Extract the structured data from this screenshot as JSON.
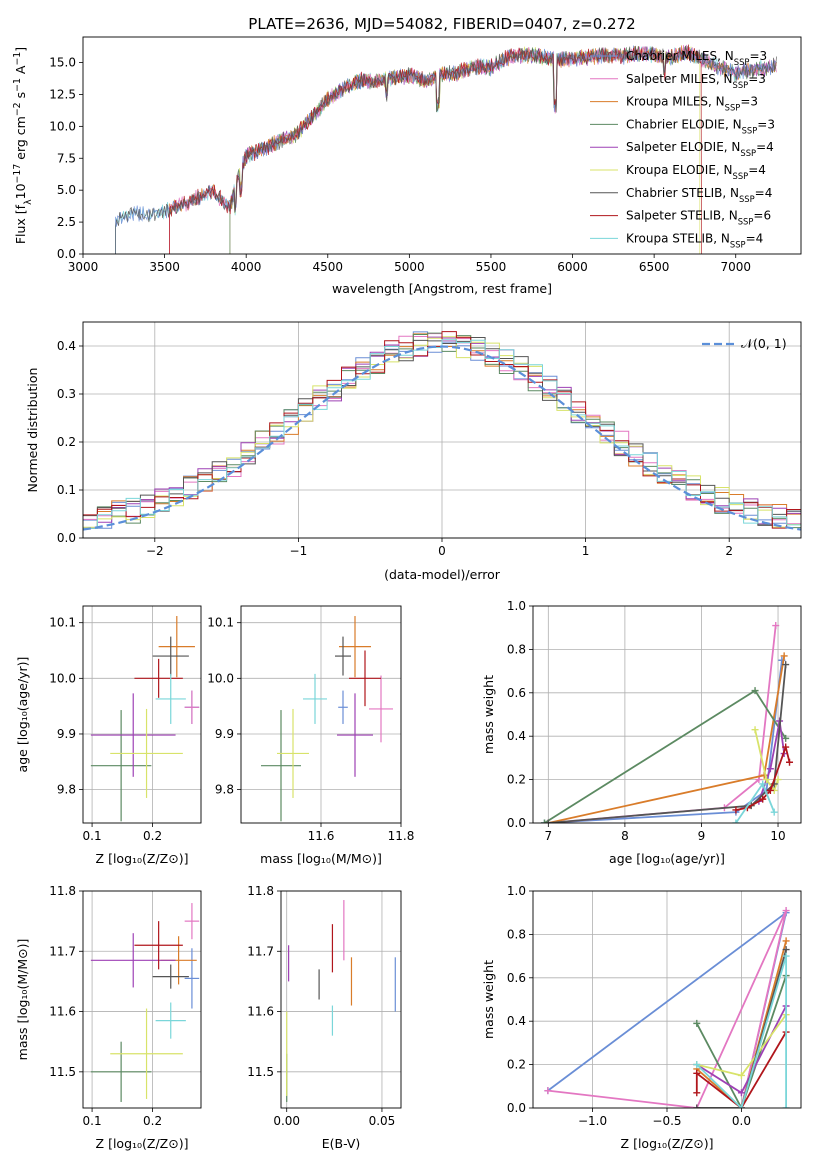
{
  "figure_title": "PLATE=2636, MJD=54082, FIBERID=0407, z=0.272",
  "colors": {
    "Chabrier MILES": "#6a8ed6",
    "Salpeter MILES": "#e377c2",
    "Kroupa MILES": "#d97c2a",
    "Chabrier ELODIE": "#5c8a62",
    "Salpeter ELODIE": "#9e41b5",
    "Kroupa ELODIE": "#d8e36a",
    "Chabrier STELIB": "#555555",
    "Salpeter STELIB": "#b0161c",
    "Kroupa STELIB": "#7ad6d9",
    "normal_curve": "#5b8fd9",
    "grid": "#b0b0b0"
  },
  "chart_data": [
    {
      "type": "line",
      "id": "spectrum",
      "title": "PLATE=2636, MJD=54082, FIBERID=0407, z=0.272",
      "xlabel": "wavelength [Angstrom, rest frame]",
      "ylabel": "Flux [fλ10⁻¹⁷ erg cm⁻² s⁻¹ A⁻¹]",
      "xlim": [
        3000,
        7400
      ],
      "ylim": [
        0,
        17
      ],
      "xticks": [
        3000,
        3500,
        4000,
        4500,
        5000,
        5500,
        6000,
        6500,
        7000
      ],
      "yticks": [
        0.0,
        2.5,
        5.0,
        7.5,
        10.0,
        12.5,
        15.0
      ],
      "grid": false,
      "legend_position": "top-right",
      "legend": [
        {
          "label": "Chabrier MILES, N",
          "sub": "SSP",
          "suffix": "=3"
        },
        {
          "label": "Salpeter MILES, N",
          "sub": "SSP",
          "suffix": "=3"
        },
        {
          "label": "Kroupa MILES, N",
          "sub": "SSP",
          "suffix": "=3"
        },
        {
          "label": "Chabrier ELODIE, N",
          "sub": "SSP",
          "suffix": "=3"
        },
        {
          "label": "Salpeter ELODIE, N",
          "sub": "SSP",
          "suffix": "=4"
        },
        {
          "label": "Kroupa ELODIE, N",
          "sub": "SSP",
          "suffix": "=4"
        },
        {
          "label": "Chabrier STELIB, N",
          "sub": "SSP",
          "suffix": "=4"
        },
        {
          "label": "Salpeter STELIB, N",
          "sub": "SSP",
          "suffix": "=6"
        },
        {
          "label": "Kroupa STELIB, N",
          "sub": "SSP",
          "suffix": "=4"
        }
      ],
      "series": [
        {
          "name": "Chabrier MILES",
          "x": [
            3200,
            3300,
            3400,
            3500,
            3600,
            3700,
            3800,
            3900,
            3950,
            4000,
            4100,
            4200,
            4300,
            4400,
            4500,
            4600,
            4700,
            4800,
            4900,
            5000,
            5100,
            5200,
            5300,
            5400,
            5500,
            5600,
            5700,
            5800,
            5900,
            6000,
            6100,
            6200,
            6300,
            6400,
            6500,
            6600,
            6700,
            6800,
            6900,
            7000,
            7100,
            7200,
            7250
          ],
          "y": [
            2.6,
            3.2,
            3.0,
            3.4,
            3.8,
            4.4,
            4.9,
            3.6,
            6.0,
            7.7,
            8.2,
            8.8,
            9.3,
            10.6,
            12.2,
            13.0,
            13.6,
            13.5,
            13.8,
            14.0,
            13.6,
            14.1,
            14.2,
            14.7,
            14.6,
            15.4,
            15.6,
            15.5,
            15.2,
            15.3,
            15.4,
            15.6,
            15.5,
            15.7,
            15.6,
            15.4,
            15.8,
            15.2,
            14.6,
            14.2,
            14.4,
            14.6,
            14.8
          ]
        }
      ]
    },
    {
      "type": "line",
      "id": "residuals",
      "xlabel": "(data-model)/error",
      "ylabel": "Normed distribution",
      "xlim": [
        -2.5,
        2.5
      ],
      "ylim": [
        0,
        0.45
      ],
      "xticks": [
        -2,
        -1,
        0,
        1,
        2
      ],
      "yticks": [
        0.0,
        0.1,
        0.2,
        0.3,
        0.4
      ],
      "grid": true,
      "legend_position": "top-right",
      "legend_label": "𝒩(0, 1)",
      "normal_curve": {
        "mean": 0,
        "std": 1
      }
    },
    {
      "type": "scatter",
      "id": "age-vs-Z",
      "xlabel": "Z [log₁₀(Z/Z⊙)]",
      "ylabel": "age  [log₁₀(age/yr)]",
      "xlim": [
        0.085,
        0.28
      ],
      "ylim": [
        9.74,
        10.13
      ],
      "xticks": [
        0.1,
        0.2
      ],
      "yticks": [
        9.8,
        9.9,
        10.0,
        10.1
      ],
      "grid": true,
      "points": [
        {
          "name": "Chabrier MILES",
          "x": 0.265,
          "y": 9.948,
          "xerr": 0.012,
          "yerr": 0.03
        },
        {
          "name": "Salpeter MILES",
          "x": 0.265,
          "y": 9.948,
          "xerr": 0.012,
          "yerr": 0.03
        },
        {
          "name": "Kroupa MILES",
          "x": 0.24,
          "y": 10.057,
          "xerr": 0.03,
          "yerr": 0.055
        },
        {
          "name": "Chabrier ELODIE",
          "x": 0.148,
          "y": 9.843,
          "xerr": 0.05,
          "yerr": 0.1
        },
        {
          "name": "Salpeter ELODIE",
          "x": 0.168,
          "y": 9.898,
          "xerr": 0.07,
          "yerr": 0.075
        },
        {
          "name": "Kroupa ELODIE",
          "x": 0.19,
          "y": 9.865,
          "xerr": 0.06,
          "yerr": 0.08
        },
        {
          "name": "Chabrier STELIB",
          "x": 0.23,
          "y": 10.04,
          "xerr": 0.03,
          "yerr": 0.035
        },
        {
          "name": "Salpeter STELIB",
          "x": 0.21,
          "y": 10.0,
          "xerr": 0.04,
          "yerr": 0.035
        },
        {
          "name": "Kroupa STELIB",
          "x": 0.23,
          "y": 9.963,
          "xerr": 0.025,
          "yerr": 0.045
        }
      ]
    },
    {
      "type": "scatter",
      "id": "age-vs-mass",
      "xlabel": "mass [log₁₀(M/M⊙)]",
      "xlim": [
        11.4,
        11.8
      ],
      "ylim": [
        9.74,
        10.13
      ],
      "xticks": [
        11.6,
        11.8
      ],
      "yticks": [
        9.8,
        9.9,
        10.0,
        10.1
      ],
      "grid": true,
      "points": [
        {
          "name": "Chabrier MILES",
          "x": 11.655,
          "y": 9.948,
          "xerr": 0.012,
          "yerr": 0.03
        },
        {
          "name": "Salpeter MILES",
          "x": 11.75,
          "y": 9.945,
          "xerr": 0.03,
          "yerr": 0.06
        },
        {
          "name": "Kroupa MILES",
          "x": 11.685,
          "y": 10.057,
          "xerr": 0.04,
          "yerr": 0.055
        },
        {
          "name": "Chabrier ELODIE",
          "x": 11.5,
          "y": 9.843,
          "xerr": 0.05,
          "yerr": 0.1
        },
        {
          "name": "Salpeter ELODIE",
          "x": 11.685,
          "y": 9.898,
          "xerr": 0.045,
          "yerr": 0.075
        },
        {
          "name": "Kroupa ELODIE",
          "x": 11.53,
          "y": 9.865,
          "xerr": 0.04,
          "yerr": 0.08
        },
        {
          "name": "Chabrier STELIB",
          "x": 11.655,
          "y": 10.04,
          "xerr": 0.02,
          "yerr": 0.035
        },
        {
          "name": "Salpeter STELIB",
          "x": 11.71,
          "y": 10.0,
          "xerr": 0.04,
          "yerr": 0.05
        },
        {
          "name": "Kroupa STELIB",
          "x": 11.585,
          "y": 9.963,
          "xerr": 0.03,
          "yerr": 0.045
        }
      ]
    },
    {
      "type": "line",
      "id": "weights-vs-age",
      "xlabel": "age  [log₁₀(age/yr)]",
      "ylabel": "mass weight",
      "xlim": [
        6.8,
        10.3
      ],
      "ylim": [
        0,
        1
      ],
      "xticks": [
        7,
        8,
        9,
        10
      ],
      "yticks": [
        0.0,
        0.2,
        0.4,
        0.6,
        0.8,
        1.0
      ],
      "grid": true,
      "series": [
        {
          "name": "Chabrier MILES",
          "x": [
            6.95,
            9.45,
            9.85,
            10.05
          ],
          "y": [
            0.0,
            0.05,
            0.15,
            0.75
          ]
        },
        {
          "name": "Salpeter MILES",
          "x": [
            7.0,
            9.3,
            9.75,
            9.97
          ],
          "y": [
            0.0,
            0.07,
            0.2,
            0.91
          ]
        },
        {
          "name": "Kroupa MILES",
          "x": [
            7.0,
            9.82,
            10.08
          ],
          "y": [
            0.0,
            0.22,
            0.77
          ]
        },
        {
          "name": "Chabrier ELODIE",
          "x": [
            6.95,
            9.7,
            10.1
          ],
          "y": [
            0.0,
            0.61,
            0.39
          ]
        },
        {
          "name": "Salpeter ELODIE",
          "x": [
            9.75,
            9.9,
            10.02,
            10.08
          ],
          "y": [
            0.1,
            0.25,
            0.47,
            0.32
          ]
        },
        {
          "name": "Kroupa ELODIE",
          "x": [
            9.7,
            9.85,
            9.95,
            10.0
          ],
          "y": [
            0.43,
            0.2,
            0.15,
            0.2
          ]
        },
        {
          "name": "Chabrier STELIB",
          "x": [
            7.0,
            9.65,
            9.95,
            10.1
          ],
          "y": [
            0.0,
            0.08,
            0.18,
            0.73
          ]
        },
        {
          "name": "Salpeter STELIB",
          "x": [
            9.45,
            9.6,
            9.8,
            9.9,
            10.1,
            10.15
          ],
          "y": [
            0.06,
            0.07,
            0.11,
            0.15,
            0.35,
            0.28
          ]
        },
        {
          "name": "Kroupa STELIB",
          "x": [
            9.45,
            9.8,
            9.95
          ],
          "y": [
            0.0,
            0.18,
            0.05
          ]
        }
      ]
    },
    {
      "type": "scatter",
      "id": "mass-vs-Z",
      "xlabel": "Z [log₁₀(Z/Z⊙)]",
      "ylabel": "mass [log₁₀(M/M⊙)]",
      "xlim": [
        0.085,
        0.28
      ],
      "ylim": [
        11.44,
        11.8
      ],
      "xticks": [
        0.1,
        0.2
      ],
      "yticks": [
        11.5,
        11.6,
        11.7,
        11.8
      ],
      "grid": true,
      "points": [
        {
          "name": "Chabrier MILES",
          "x": 0.265,
          "y": 11.655,
          "xerr": 0.012,
          "yerr": 0.05
        },
        {
          "name": "Salpeter MILES",
          "x": 0.265,
          "y": 11.75,
          "xerr": 0.012,
          "yerr": 0.03
        },
        {
          "name": "Kroupa MILES",
          "x": 0.243,
          "y": 11.685,
          "xerr": 0.03,
          "yerr": 0.04
        },
        {
          "name": "Chabrier ELODIE",
          "x": 0.148,
          "y": 11.5,
          "xerr": 0.05,
          "yerr": 0.05
        },
        {
          "name": "Salpeter ELODIE",
          "x": 0.168,
          "y": 11.685,
          "xerr": 0.07,
          "yerr": 0.045
        },
        {
          "name": "Kroupa ELODIE",
          "x": 0.19,
          "y": 11.53,
          "xerr": 0.06,
          "yerr": 0.075
        },
        {
          "name": "Chabrier STELIB",
          "x": 0.23,
          "y": 11.658,
          "xerr": 0.03,
          "yerr": 0.02
        },
        {
          "name": "Salpeter STELIB",
          "x": 0.21,
          "y": 11.71,
          "xerr": 0.04,
          "yerr": 0.04
        },
        {
          "name": "Kroupa STELIB",
          "x": 0.23,
          "y": 11.585,
          "xerr": 0.025,
          "yerr": 0.03
        }
      ]
    },
    {
      "type": "scatter",
      "id": "mass-vs-EBV",
      "xlabel": "E(B-V)",
      "xlim": [
        -0.003,
        0.06
      ],
      "ylim": [
        11.44,
        11.8
      ],
      "xticks": [
        0.0,
        0.05
      ],
      "yticks": [
        11.5,
        11.6,
        11.7,
        11.8
      ],
      "grid": true,
      "points": [
        {
          "name": "Chabrier MILES",
          "x": 0.057,
          "y": 11.645,
          "xerr": 0,
          "yerr": 0.045
        },
        {
          "name": "Salpeter MILES",
          "x": 0.03,
          "y": 11.735,
          "xerr": 0,
          "yerr": 0.05
        },
        {
          "name": "Kroupa MILES",
          "x": 0.034,
          "y": 11.65,
          "xerr": 0,
          "yerr": 0.04
        },
        {
          "name": "Chabrier ELODIE",
          "x": 0.0,
          "y": 11.49,
          "xerr": 0,
          "yerr": 0.04
        },
        {
          "name": "Salpeter ELODIE",
          "x": 0.001,
          "y": 11.68,
          "xerr": 0,
          "yerr": 0.03
        },
        {
          "name": "Kroupa ELODIE",
          "x": 0.0,
          "y": 11.53,
          "xerr": 0,
          "yerr": 0.07
        },
        {
          "name": "Chabrier STELIB",
          "x": 0.017,
          "y": 11.645,
          "xerr": 0,
          "yerr": 0.025
        },
        {
          "name": "Salpeter STELIB",
          "x": 0.024,
          "y": 11.705,
          "xerr": 0,
          "yerr": 0.04
        },
        {
          "name": "Kroupa STELIB",
          "x": 0.024,
          "y": 11.585,
          "xerr": 0,
          "yerr": 0.025
        }
      ]
    },
    {
      "type": "line",
      "id": "weights-vs-Z",
      "xlabel": "Z [log₁₀(Z/Z⊙)]",
      "ylabel": "mass weight",
      "xlim": [
        -1.4,
        0.4
      ],
      "ylim": [
        0,
        1
      ],
      "xticks": [
        -1.0,
        -0.5,
        0.0
      ],
      "yticks": [
        0.0,
        0.2,
        0.4,
        0.6,
        0.8,
        1.0
      ],
      "grid": true,
      "series": [
        {
          "name": "Chabrier MILES",
          "x": [
            -1.3,
            0.3,
            0.0
          ],
          "y": [
            0.08,
            0.9,
            0.0
          ]
        },
        {
          "name": "Salpeter MILES",
          "x": [
            -1.3,
            -0.3,
            0.3,
            0.0
          ],
          "y": [
            0.08,
            0.0,
            0.91,
            0.0
          ]
        },
        {
          "name": "Kroupa MILES",
          "x": [
            -0.3,
            0.0,
            0.3
          ],
          "y": [
            0.18,
            0.0,
            0.77
          ]
        },
        {
          "name": "Chabrier ELODIE",
          "x": [
            -0.3,
            0.0,
            0.3
          ],
          "y": [
            0.39,
            0.0,
            0.61
          ]
        },
        {
          "name": "Salpeter ELODIE",
          "x": [
            -0.3,
            0.0,
            0.3
          ],
          "y": [
            0.2,
            0.07,
            0.47
          ]
        },
        {
          "name": "Kroupa ELODIE",
          "x": [
            -0.3,
            0.0,
            0.3
          ],
          "y": [
            0.2,
            0.15,
            0.43
          ]
        },
        {
          "name": "Chabrier STELIB",
          "x": [
            -0.3,
            0.0,
            0.3
          ],
          "y": [
            0.0,
            0.0,
            0.73
          ]
        },
        {
          "name": "Salpeter STELIB",
          "x": [
            -0.3,
            -0.3,
            0.0,
            0.3
          ],
          "y": [
            0.07,
            0.16,
            0.0,
            0.35
          ]
        },
        {
          "name": "Kroupa STELIB",
          "x": [
            -0.3,
            0.0,
            0.3,
            0.3
          ],
          "y": [
            0.2,
            0.0,
            0.7,
            0.0
          ]
        }
      ]
    }
  ]
}
